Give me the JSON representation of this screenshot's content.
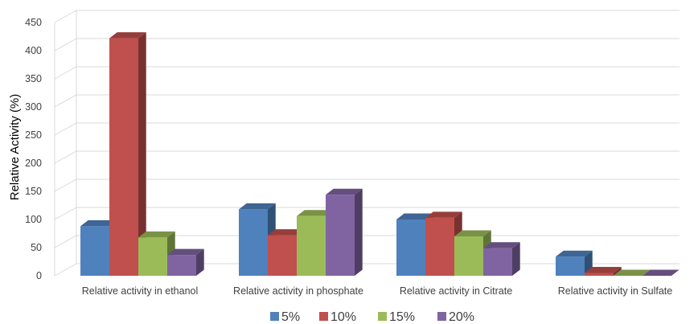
{
  "chart_data": {
    "type": "bar",
    "ylabel": "Relative Activity (%)",
    "ylim": [
      0,
      450
    ],
    "yticks": [
      "0",
      "50",
      "100",
      "150",
      "200",
      "250",
      "300",
      "350",
      "400",
      "450"
    ],
    "categories": [
      "Relative activity in ethanol",
      "Relative activity in phosphate",
      "Relative activity in Citrate",
      "Relative activity in Sulfate"
    ],
    "series": [
      {
        "name": "5%",
        "color": "#4F81BD",
        "values": [
          88,
          118,
          100,
          34
        ]
      },
      {
        "name": "10%",
        "color": "#C0504D",
        "values": [
          422,
          72,
          103,
          5
        ]
      },
      {
        "name": "15%",
        "color": "#9BBB59",
        "values": [
          68,
          106,
          70,
          0
        ]
      },
      {
        "name": "20%",
        "color": "#8064A2",
        "values": [
          37,
          144,
          49,
          0
        ]
      }
    ],
    "grid": true,
    "legend_position": "bottom"
  }
}
